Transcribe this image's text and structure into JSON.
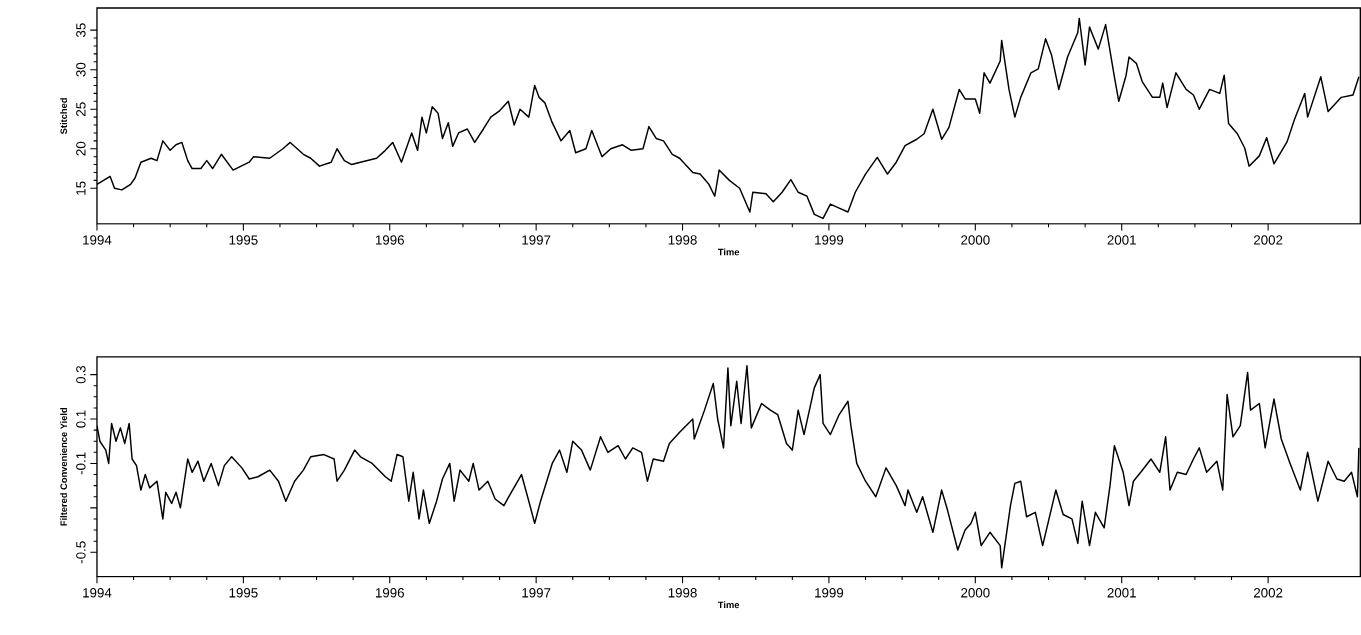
{
  "chart_data": [
    {
      "type": "line",
      "xlabel": "Time",
      "ylabel": "Stitched",
      "xlim": [
        1994,
        2002.63
      ],
      "ylim": [
        10.5,
        37.8
      ],
      "xticks": [
        1994,
        1995,
        1996,
        1997,
        1998,
        1999,
        2000,
        2001,
        2002
      ],
      "yticks": [
        15,
        20,
        25,
        30,
        35
      ],
      "series": [
        {
          "color": "#000000",
          "x": [
            1994.0,
            1994.09,
            1994.12,
            1994.17,
            1994.23,
            1994.26,
            1994.3,
            1994.37,
            1994.41,
            1994.45,
            1994.5,
            1994.54,
            1994.58,
            1994.62,
            1994.65,
            1994.71,
            1994.75,
            1994.79,
            1994.85,
            1994.93,
            1995.04,
            1995.07,
            1995.18,
            1995.27,
            1995.32,
            1995.41,
            1995.46,
            1995.52,
            1995.6,
            1995.64,
            1995.69,
            1995.74,
            1995.8,
            1995.91,
            1995.97,
            1996.02,
            1996.08,
            1996.15,
            1996.19,
            1996.22,
            1996.25,
            1996.29,
            1996.33,
            1996.36,
            1996.4,
            1996.43,
            1996.47,
            1996.53,
            1996.58,
            1996.64,
            1996.69,
            1996.75,
            1996.81,
            1996.85,
            1996.89,
            1996.95,
            1996.99,
            1997.02,
            1997.06,
            1997.11,
            1997.17,
            1997.23,
            1997.27,
            1997.34,
            1997.38,
            1997.45,
            1997.51,
            1997.59,
            1997.65,
            1997.73,
            1997.77,
            1997.82,
            1997.87,
            1997.93,
            1997.98,
            1998.07,
            1998.12,
            1998.18,
            1998.22,
            1998.25,
            1998.32,
            1998.39,
            1998.46,
            1998.48,
            1998.57,
            1998.62,
            1998.68,
            1998.74,
            1998.79,
            1998.85,
            1998.9,
            1998.96,
            1999.01,
            1999.07,
            1999.13,
            1999.18,
            1999.25,
            1999.33,
            1999.4,
            1999.46,
            1999.52,
            1999.6,
            1999.65,
            1999.71,
            1999.77,
            1999.82,
            1999.89,
            1999.93,
            2000.0,
            2000.03,
            2000.06,
            2000.1,
            2000.17,
            2000.18,
            2000.23,
            2000.27,
            2000.31,
            2000.38,
            2000.43,
            2000.48,
            2000.52,
            2000.57,
            2000.63,
            2000.7,
            2000.71,
            2000.75,
            2000.78,
            2000.84,
            2000.89,
            2000.95,
            2000.98,
            2001.03,
            2001.05,
            2001.1,
            2001.14,
            2001.21,
            2001.26,
            2001.28,
            2001.31,
            2001.37,
            2001.44,
            2001.49,
            2001.53,
            2001.6,
            2001.67,
            2001.7,
            2001.73,
            2001.79,
            2001.84,
            2001.87,
            2001.94,
            2001.99,
            2002.04,
            2002.13,
            2002.18,
            2002.25,
            2002.27,
            2002.36,
            2002.41,
            2002.5,
            2002.58,
            2002.62
          ],
          "values": [
            15.5,
            16.5,
            15.0,
            14.8,
            15.5,
            16.3,
            18.3,
            18.8,
            18.5,
            21.0,
            19.8,
            20.5,
            20.8,
            18.5,
            17.5,
            17.5,
            18.5,
            17.5,
            19.3,
            17.3,
            18.3,
            19.0,
            18.8,
            20.0,
            20.8,
            19.3,
            18.8,
            17.8,
            18.3,
            20.0,
            18.5,
            18.0,
            18.3,
            18.8,
            19.8,
            20.8,
            18.3,
            22.0,
            19.8,
            24.0,
            22.0,
            25.3,
            24.5,
            21.3,
            23.3,
            20.3,
            22.0,
            22.5,
            20.8,
            22.5,
            24.0,
            24.8,
            26.0,
            23.0,
            25.0,
            24.0,
            28.0,
            26.5,
            25.8,
            23.3,
            21.0,
            22.3,
            19.5,
            20.0,
            22.3,
            19.0,
            20.0,
            20.5,
            19.8,
            20.0,
            22.8,
            21.3,
            21.0,
            19.3,
            18.8,
            17.0,
            16.8,
            15.5,
            14.0,
            17.3,
            16.0,
            15.0,
            12.0,
            14.5,
            14.3,
            13.3,
            14.5,
            16.1,
            14.5,
            14.0,
            11.7,
            11.2,
            13.0,
            12.5,
            12.0,
            14.5,
            16.8,
            18.9,
            16.8,
            18.3,
            20.4,
            21.2,
            21.9,
            25.0,
            21.2,
            22.7,
            27.5,
            26.3,
            26.3,
            24.5,
            29.6,
            28.3,
            31.1,
            33.7,
            27.5,
            24.0,
            26.5,
            29.6,
            30.1,
            33.9,
            31.9,
            27.5,
            31.6,
            34.7,
            36.5,
            30.6,
            35.4,
            32.6,
            35.7,
            29.1,
            26.0,
            29.3,
            31.6,
            30.8,
            28.5,
            26.5,
            26.5,
            28.3,
            25.2,
            29.6,
            27.5,
            26.8,
            25.0,
            27.5,
            27.0,
            29.3,
            23.2,
            21.9,
            20.1,
            17.8,
            19.1,
            21.4,
            18.1,
            20.9,
            23.7,
            27.0,
            24.0,
            29.1,
            24.7,
            26.5,
            26.8,
            29.1
          ]
        }
      ]
    },
    {
      "type": "line",
      "xlabel": "Time",
      "ylabel": "Filtered Convenience Yield",
      "xlim": [
        1994,
        2002.63
      ],
      "ylim": [
        -0.61,
        0.38
      ],
      "xticks": [
        1994,
        1995,
        1996,
        1997,
        1998,
        1999,
        2000,
        2001,
        2002
      ],
      "yticks": [
        0.3,
        0.1,
        -0.1,
        {
          "value": -0.3,
          "label": null
        },
        -0.5
      ],
      "series": [
        {
          "color": "#000000",
          "x": [
            1994.0,
            1994.02,
            1994.06,
            1994.08,
            1994.1,
            1994.13,
            1994.16,
            1994.19,
            1994.22,
            1994.24,
            1994.27,
            1994.3,
            1994.33,
            1994.36,
            1994.41,
            1994.45,
            1994.47,
            1994.51,
            1994.54,
            1994.57,
            1994.62,
            1994.65,
            1994.69,
            1994.73,
            1994.78,
            1994.83,
            1994.87,
            1994.92,
            1994.99,
            1995.04,
            1995.1,
            1995.18,
            1995.24,
            1995.29,
            1995.35,
            1995.41,
            1995.46,
            1995.55,
            1995.62,
            1995.64,
            1995.69,
            1995.76,
            1995.8,
            1995.88,
            1995.97,
            1996.01,
            1996.05,
            1996.09,
            1996.13,
            1996.16,
            1996.2,
            1996.23,
            1996.27,
            1996.32,
            1996.36,
            1996.41,
            1996.44,
            1996.48,
            1996.54,
            1996.57,
            1996.61,
            1996.67,
            1996.72,
            1996.78,
            1996.83,
            1996.9,
            1996.95,
            1996.99,
            1997.03,
            1997.11,
            1997.16,
            1997.21,
            1997.25,
            1997.31,
            1997.37,
            1997.44,
            1997.49,
            1997.56,
            1997.61,
            1997.66,
            1997.72,
            1997.76,
            1997.8,
            1997.87,
            1997.91,
            1997.98,
            1998.07,
            1998.08,
            1998.15,
            1998.21,
            1998.24,
            1998.28,
            1998.31,
            1998.33,
            1998.37,
            1998.4,
            1998.44,
            1998.47,
            1998.54,
            1998.6,
            1998.65,
            1998.71,
            1998.75,
            1998.79,
            1998.83,
            1998.9,
            1998.94,
            1998.96,
            1999.01,
            1999.07,
            1999.13,
            1999.15,
            1999.19,
            1999.25,
            1999.32,
            1999.39,
            1999.46,
            1999.52,
            1999.54,
            1999.6,
            1999.64,
            1999.71,
            1999.77,
            1999.81,
            1999.88,
            1999.93,
            1999.97,
            2000.0,
            2000.04,
            2000.1,
            2000.17,
            2000.18,
            2000.24,
            2000.27,
            2000.31,
            2000.35,
            2000.41,
            2000.46,
            2000.55,
            2000.6,
            2000.66,
            2000.7,
            2000.73,
            2000.78,
            2000.82,
            2000.88,
            2000.92,
            2000.95,
            2001.01,
            2001.05,
            2001.08,
            2001.13,
            2001.2,
            2001.26,
            2001.3,
            2001.33,
            2001.38,
            2001.44,
            2001.49,
            2001.53,
            2001.58,
            2001.65,
            2001.69,
            2001.72,
            2001.76,
            2001.81,
            2001.86,
            2001.88,
            2001.94,
            2001.98,
            2002.04,
            2002.09,
            2002.15,
            2002.22,
            2002.27,
            2002.34,
            2002.41,
            2002.47,
            2002.52,
            2002.57,
            2002.61,
            2002.62
          ],
          "values": [
            0.07,
            0.0,
            -0.04,
            -0.1,
            0.08,
            0.0,
            0.06,
            -0.01,
            0.08,
            -0.08,
            -0.11,
            -0.22,
            -0.15,
            -0.21,
            -0.18,
            -0.35,
            -0.23,
            -0.28,
            -0.23,
            -0.3,
            -0.08,
            -0.14,
            -0.09,
            -0.18,
            -0.1,
            -0.2,
            -0.11,
            -0.07,
            -0.12,
            -0.17,
            -0.16,
            -0.13,
            -0.18,
            -0.27,
            -0.18,
            -0.13,
            -0.07,
            -0.06,
            -0.08,
            -0.18,
            -0.13,
            -0.04,
            -0.07,
            -0.1,
            -0.16,
            -0.18,
            -0.06,
            -0.07,
            -0.27,
            -0.14,
            -0.35,
            -0.22,
            -0.37,
            -0.27,
            -0.17,
            -0.1,
            -0.27,
            -0.13,
            -0.18,
            -0.1,
            -0.22,
            -0.18,
            -0.26,
            -0.29,
            -0.23,
            -0.15,
            -0.27,
            -0.37,
            -0.27,
            -0.1,
            -0.04,
            -0.14,
            0.0,
            -0.04,
            -0.13,
            0.02,
            -0.05,
            -0.02,
            -0.08,
            -0.03,
            -0.05,
            -0.18,
            -0.08,
            -0.09,
            -0.01,
            0.04,
            0.1,
            0.01,
            0.14,
            0.26,
            0.1,
            -0.03,
            0.33,
            0.07,
            0.27,
            0.08,
            0.34,
            0.06,
            0.17,
            0.14,
            0.12,
            -0.01,
            -0.04,
            0.14,
            0.03,
            0.24,
            0.3,
            0.08,
            0.03,
            0.12,
            0.18,
            0.07,
            -0.1,
            -0.18,
            -0.25,
            -0.12,
            -0.2,
            -0.29,
            -0.22,
            -0.32,
            -0.25,
            -0.41,
            -0.22,
            -0.31,
            -0.49,
            -0.4,
            -0.37,
            -0.32,
            -0.47,
            -0.41,
            -0.47,
            -0.57,
            -0.29,
            -0.19,
            -0.18,
            -0.34,
            -0.32,
            -0.47,
            -0.22,
            -0.33,
            -0.35,
            -0.46,
            -0.27,
            -0.47,
            -0.32,
            -0.39,
            -0.2,
            -0.02,
            -0.14,
            -0.29,
            -0.18,
            -0.14,
            -0.08,
            -0.14,
            0.02,
            -0.22,
            -0.14,
            -0.15,
            -0.08,
            -0.03,
            -0.14,
            -0.09,
            -0.22,
            0.21,
            0.02,
            0.07,
            0.31,
            0.14,
            0.17,
            -0.03,
            0.19,
            0.01,
            -0.1,
            -0.22,
            -0.05,
            -0.27,
            -0.09,
            -0.17,
            -0.18,
            -0.14,
            -0.25,
            -0.03
          ]
        }
      ]
    }
  ]
}
